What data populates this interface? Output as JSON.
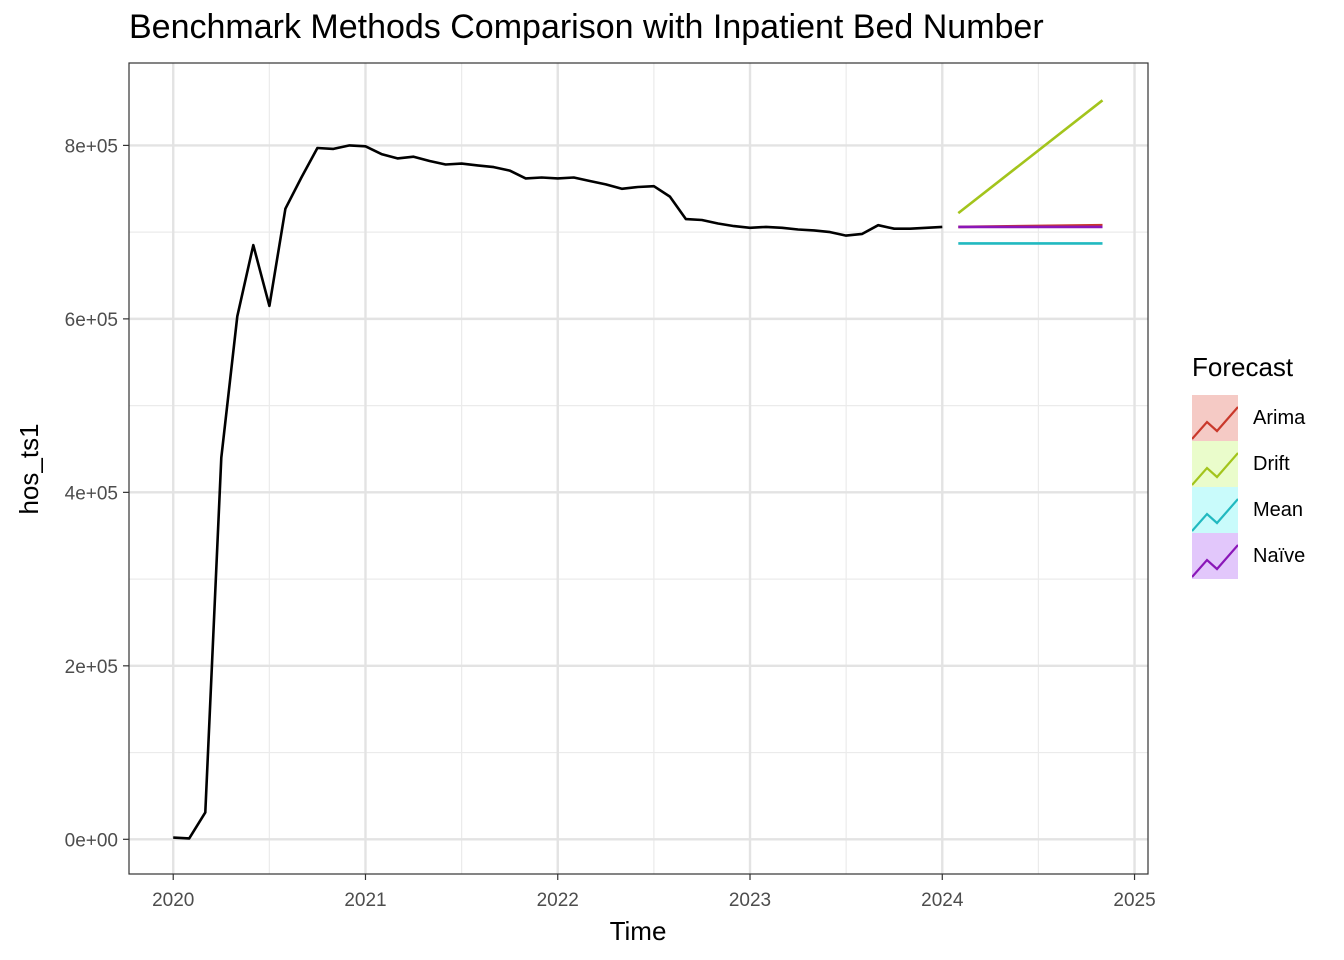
{
  "chart_data": {
    "type": "line",
    "title": "Benchmark Methods Comparison with Inpatient Bed Number",
    "xlabel": "Time",
    "ylabel": "hos_ts1",
    "xlim": [
      2019.77,
      2025.07
    ],
    "ylim": [
      -40000,
      895000
    ],
    "x_ticks": [
      2020,
      2021,
      2022,
      2023,
      2024,
      2025
    ],
    "x_tick_labels": [
      "2020",
      "2021",
      "2022",
      "2023",
      "2024",
      "2025"
    ],
    "y_ticks": [
      0,
      200000,
      400000,
      600000,
      800000
    ],
    "y_tick_labels": [
      "0e+00",
      "2e+05",
      "4e+05",
      "6e+05",
      "8e+05"
    ],
    "grid": true,
    "observed": {
      "color": "#000000",
      "x": [
        2020.0,
        2020.0833,
        2020.1667,
        2020.25,
        2020.3333,
        2020.4167,
        2020.5,
        2020.5833,
        2020.6667,
        2020.75,
        2020.8333,
        2020.9167,
        2021.0,
        2021.0833,
        2021.1667,
        2021.25,
        2021.3333,
        2021.4167,
        2021.5,
        2021.5833,
        2021.6667,
        2021.75,
        2021.8333,
        2021.9167,
        2022.0,
        2022.0833,
        2022.1667,
        2022.25,
        2022.3333,
        2022.4167,
        2022.5,
        2022.5833,
        2022.6667,
        2022.75,
        2022.8333,
        2022.9167,
        2023.0,
        2023.0833,
        2023.1667,
        2023.25,
        2023.3333,
        2023.4167,
        2023.5,
        2023.5833,
        2023.6667,
        2023.75,
        2023.8333,
        2023.9167,
        2024.0
      ],
      "y": [
        2000,
        1000,
        31000,
        440000,
        603000,
        685000,
        615000,
        727000,
        763000,
        797000,
        796000,
        800000,
        799000,
        790000,
        785000,
        787000,
        782000,
        778000,
        779000,
        777000,
        775000,
        771000,
        762000,
        763000,
        762000,
        763000,
        759000,
        755000,
        750000,
        752000,
        753000,
        741000,
        715000,
        714000,
        710000,
        707000,
        705000,
        706000,
        705000,
        703000,
        702000,
        700000,
        696000,
        698000,
        708000,
        704000,
        704000,
        705000,
        706000
      ]
    },
    "series": [
      {
        "name": "Arima",
        "color": "#c9382b",
        "x": [
          2024.0833,
          2024.8333
        ],
        "y": [
          706000,
          708000
        ]
      },
      {
        "name": "Drift",
        "color": "#a3c41c",
        "x": [
          2024.0833,
          2024.8333
        ],
        "y": [
          722000,
          852000
        ]
      },
      {
        "name": "Mean",
        "color": "#21b9c0",
        "x": [
          2024.0833,
          2024.8333
        ],
        "y": [
          687000,
          687000
        ]
      },
      {
        "name": "Naïve",
        "color": "#8a16b8",
        "x": [
          2024.0833,
          2024.8333
        ],
        "y": [
          706000,
          706000
        ]
      }
    ],
    "legend": {
      "title": "Forecast",
      "position": "right",
      "fill_colors": [
        "#f5cac5",
        "#eafccb",
        "#c9fbfb",
        "#e2c7fb"
      ]
    }
  }
}
